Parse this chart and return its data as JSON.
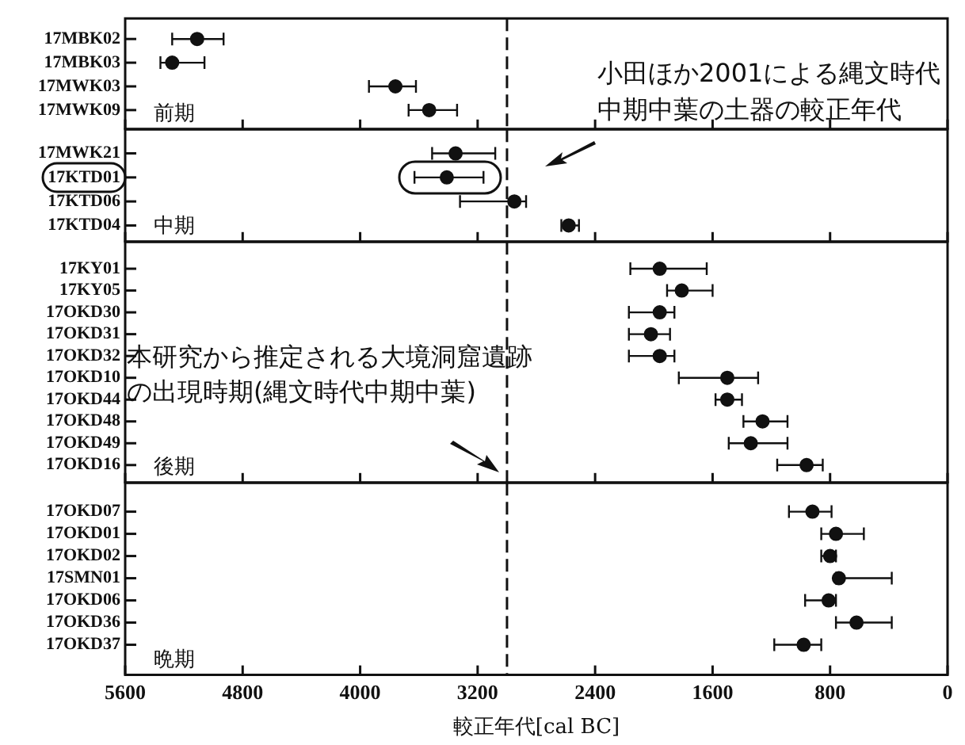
{
  "chart_data": [
    {
      "type": "scatter",
      "orientation": "horizontal",
      "color": "#111111",
      "marker": "circle",
      "grid": false,
      "tick_labels": "y",
      "categories": [
        "17MBK02",
        "17MBK03",
        "17MWK03",
        "17MWK09"
      ],
      "values": [
        5110,
        5280,
        3760,
        3530
      ],
      "errors": [
        [
          4930,
          5280
        ],
        [
          5060,
          5360
        ],
        [
          3620,
          3940
        ],
        [
          3340,
          3670
        ]
      ],
      "xlim": [
        5600,
        0
      ],
      "xticks": [
        5600,
        4800,
        4000,
        3200,
        2400,
        1600,
        800,
        0
      ],
      "ref_lines": [
        {
          "axis": "x",
          "value": 3000,
          "line_style": "dashed"
        }
      ],
      "annotations": [
        "前期",
        "小田ほか2001による縄文時代中期中葉の土器の較正年代"
      ]
    },
    {
      "type": "scatter",
      "orientation": "horizontal",
      "color": "#111111",
      "marker": "circle",
      "grid": false,
      "tick_labels": "y",
      "categories": [
        "17MWK21",
        "17KTD01",
        "17KTD06",
        "17KTD04"
      ],
      "values": [
        3350,
        3410,
        2950,
        2580
      ],
      "errors": [
        [
          3080,
          3510
        ],
        [
          3160,
          3630
        ],
        [
          2870,
          3320
        ],
        [
          2510,
          2630
        ]
      ],
      "xlim": [
        5600,
        0
      ],
      "xticks": [
        5600,
        4800,
        4000,
        3200,
        2400,
        1600,
        800,
        0
      ],
      "ref_lines": [
        {
          "axis": "x",
          "value": 3000,
          "line_style": "dashed"
        }
      ],
      "annotations": [
        "中期"
      ]
    },
    {
      "type": "scatter",
      "orientation": "horizontal",
      "color": "#111111",
      "marker": "circle",
      "grid": false,
      "tick_labels": "y",
      "categories": [
        "17KY01",
        "17KY05",
        "17OKD30",
        "17OKD31",
        "17OKD32",
        "17OKD10",
        "17OKD44",
        "17OKD48",
        "17OKD49",
        "17OKD16"
      ],
      "values": [
        1960,
        1810,
        1960,
        2020,
        1960,
        1500,
        1500,
        1260,
        1340,
        960
      ],
      "errors": [
        [
          1640,
          2160
        ],
        [
          1600,
          1910
        ],
        [
          1860,
          2170
        ],
        [
          1890,
          2170
        ],
        [
          1860,
          2170
        ],
        [
          1290,
          1830
        ],
        [
          1400,
          1580
        ],
        [
          1090,
          1390
        ],
        [
          1090,
          1490
        ],
        [
          850,
          1160
        ]
      ],
      "xlim": [
        5600,
        0
      ],
      "xticks": [
        5600,
        4800,
        4000,
        3200,
        2400,
        1600,
        800,
        0
      ],
      "ref_lines": [
        {
          "axis": "x",
          "value": 3000,
          "line_style": "dashed"
        }
      ],
      "annotations": [
        "後期",
        "本研究から推定される大境洞窟遺跡の出現時期(縄文時代中期中葉)"
      ]
    },
    {
      "type": "scatter",
      "orientation": "horizontal",
      "color": "#111111",
      "marker": "circle",
      "grid": false,
      "categories": [
        "17OKD07",
        "17OKD01",
        "17OKD02",
        "17SMN01",
        "17OKD06",
        "17OKD36",
        "17OKD37"
      ],
      "values": [
        920,
        760,
        800,
        740,
        810,
        620,
        980
      ],
      "errors": [
        [
          790,
          1080
        ],
        [
          570,
          860
        ],
        [
          760,
          860
        ],
        [
          380,
          760
        ],
        [
          760,
          970
        ],
        [
          380,
          760
        ],
        [
          860,
          1180
        ]
      ],
      "xlim": [
        5600,
        0
      ],
      "xticks": [
        5600,
        4800,
        4000,
        3200,
        2400,
        1600,
        800,
        0
      ],
      "xlabel": "較正年代[cal BC]",
      "ref_lines": [
        {
          "axis": "x",
          "value": 3000,
          "line_style": "dashed"
        }
      ],
      "annotations": [
        "晩期"
      ]
    }
  ]
}
